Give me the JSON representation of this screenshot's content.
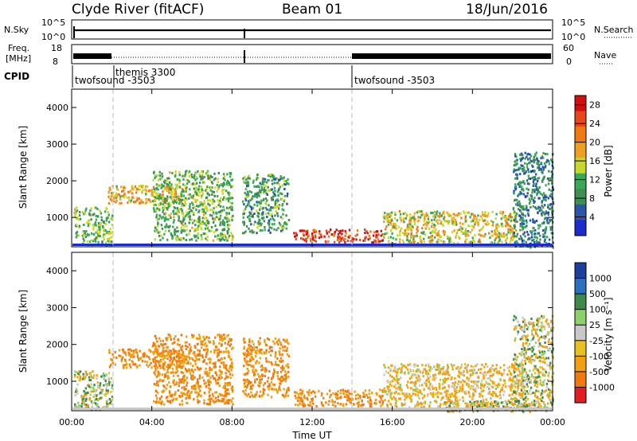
{
  "header": {
    "title": "Clyde River (fitACF)",
    "beam": "Beam 01",
    "date": "18/Jun/2016"
  },
  "colors": {
    "power_scale": [
      "#1a2ccc",
      "#2a55a8",
      "#3f8f55",
      "#3aa858",
      "#c8d82a",
      "#f0a020",
      "#f07a10",
      "#e84818",
      "#d01010"
    ],
    "velocity_scale": [
      "#1c3f9e",
      "#2b6fbf",
      "#3d8a4a",
      "#8cd06a",
      "#c8c8c8",
      "#e8c020",
      "#f0a010",
      "#f07a10",
      "#e02020"
    ]
  },
  "status_panels": {
    "nsky_label": "N.Sky",
    "nsky_ticks": [
      "10^5",
      "10^0"
    ],
    "nsearch_label": "N.Search",
    "freq_label_1": "Freq.",
    "freq_label_2": "[MHz]",
    "freq_ticks": [
      "18",
      "8"
    ],
    "nave_label": "Nave",
    "nave_ticks": [
      "60",
      "0"
    ],
    "cpid_label": "CPID",
    "cpid_modes": [
      {
        "name": "twofsound -3503",
        "start": "00:00",
        "end": "01:49"
      },
      {
        "name": "themis 3300",
        "start": "01:49",
        "end": "14:00"
      },
      {
        "name": "twofsound -3503",
        "start": "14:00",
        "end": "24:00"
      }
    ]
  },
  "chart_data": [
    {
      "type": "heatmap",
      "title": "",
      "ylabel": "Slant Range [km]",
      "xlabel": "",
      "xlim": [
        0,
        24
      ],
      "ylim": [
        200,
        4500
      ],
      "yticks": [
        "1000",
        "2000",
        "3000",
        "4000"
      ],
      "colorbar": {
        "label": "Power [dB]",
        "ticks": [
          "4",
          "8",
          "12",
          "16",
          "20",
          "24",
          "28"
        ],
        "range": [
          0,
          30
        ]
      },
      "regions": [
        {
          "t0": 0.1,
          "t1": 2.0,
          "r0": 250,
          "r1": 1300,
          "power": 12
        },
        {
          "t0": 1.8,
          "t1": 5.5,
          "r0": 1400,
          "r1": 1900,
          "power": 18
        },
        {
          "t0": 4.0,
          "t1": 8.0,
          "r0": 400,
          "r1": 2300,
          "power": 12
        },
        {
          "t0": 8.5,
          "t1": 10.8,
          "r0": 600,
          "r1": 2200,
          "power": 10
        },
        {
          "t0": 11.0,
          "t1": 15.5,
          "r0": 350,
          "r1": 700,
          "power": 26
        },
        {
          "t0": 15.5,
          "t1": 22.5,
          "r0": 300,
          "r1": 1200,
          "power": 16
        },
        {
          "t0": 22.0,
          "t1": 24.0,
          "r0": 200,
          "r1": 2800,
          "power": 8
        }
      ]
    },
    {
      "type": "heatmap",
      "title": "",
      "ylabel": "Slant Range [km]",
      "xlabel": "Time UT",
      "xlim": [
        0,
        24
      ],
      "ylim": [
        200,
        4500
      ],
      "xticks": [
        "00:00",
        "04:00",
        "08:00",
        "12:00",
        "16:00",
        "20:00",
        "00:00"
      ],
      "yticks": [
        "1000",
        "2000",
        "3000",
        "4000"
      ],
      "colorbar": {
        "label": "Velocity [m s⁻¹]",
        "ticks": [
          "1000",
          "500",
          "100",
          "25",
          "-25",
          "-100",
          "-500",
          "-1000"
        ]
      },
      "regions": [
        {
          "t0": 0.1,
          "t1": 2.0,
          "r0": 250,
          "r1": 1300,
          "velocity": 25
        },
        {
          "t0": 1.8,
          "t1": 5.5,
          "r0": 1400,
          "r1": 1900,
          "velocity": -300
        },
        {
          "t0": 4.0,
          "t1": 8.0,
          "r0": 400,
          "r1": 2300,
          "velocity": -300
        },
        {
          "t0": 8.5,
          "t1": 10.8,
          "r0": 600,
          "r1": 2200,
          "velocity": -300
        },
        {
          "t0": 11.0,
          "t1": 15.5,
          "r0": 350,
          "r1": 800,
          "velocity": -300
        },
        {
          "t0": 15.5,
          "t1": 22.5,
          "r0": 300,
          "r1": 1500,
          "velocity": -100
        },
        {
          "t0": 18.5,
          "t1": 23.5,
          "r0": 200,
          "r1": 500,
          "velocity": 0
        },
        {
          "t0": 22.0,
          "t1": 24.0,
          "r0": 200,
          "r1": 2800,
          "velocity": 0
        }
      ]
    }
  ]
}
